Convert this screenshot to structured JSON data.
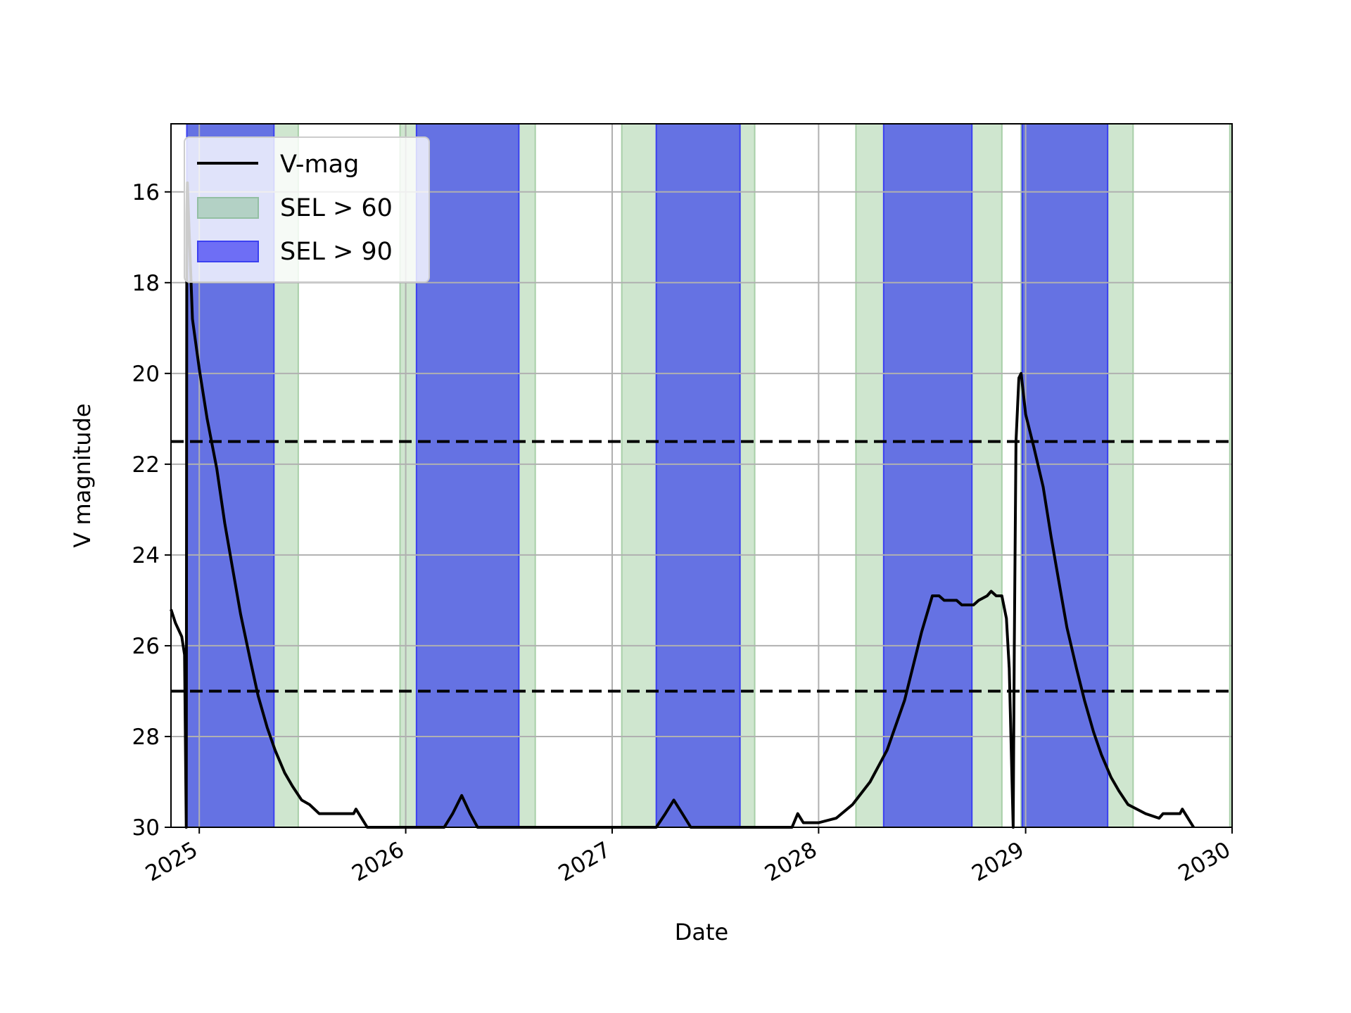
{
  "chart_data": {
    "type": "line",
    "title": "",
    "xlabel": "Date",
    "ylabel": "V magnitude",
    "xlim": [
      "2024-11-12",
      "2030-01-01"
    ],
    "ylim": [
      30,
      14.5
    ],
    "y_inverted": true,
    "grid": true,
    "x_ticks": [
      "2025",
      "2026",
      "2027",
      "2028",
      "2029",
      "2030"
    ],
    "x_tick_dates": [
      "2025-01-01",
      "2026-01-01",
      "2027-01-01",
      "2028-01-01",
      "2029-01-01",
      "2030-01-01"
    ],
    "y_ticks": [
      16,
      18,
      20,
      22,
      24,
      26,
      28,
      30
    ],
    "legend_position": "upper-left",
    "legend": [
      {
        "label": "V-mag",
        "kind": "line"
      },
      {
        "label": "SEL > 60",
        "kind": "patch"
      },
      {
        "label": "SEL > 90",
        "kind": "patch"
      }
    ],
    "colors": {
      "vmag": "#000000",
      "sel60": "#cfe6cf",
      "sel60_legend": "#b3d1c5",
      "sel90": "#6572e3",
      "sel90_edge": "#3b40f0",
      "grid": "#b0b0b0",
      "hline": "#000000"
    },
    "hlines": [
      21.5,
      27.0
    ],
    "series": [
      {
        "name": "V-mag",
        "points": [
          [
            "2024-11-12",
            25.2
          ],
          [
            "2024-11-20",
            25.5
          ],
          [
            "2024-12-01",
            25.8
          ],
          [
            "2024-12-06",
            26.2
          ],
          [
            "2024-12-09",
            30.0
          ],
          [
            "2024-12-10",
            16.5
          ],
          [
            "2024-12-11",
            15.8
          ],
          [
            "2024-12-13",
            16.5
          ],
          [
            "2024-12-20",
            18.8
          ],
          [
            "2025-01-01",
            19.9
          ],
          [
            "2025-01-15",
            21.0
          ],
          [
            "2025-02-01",
            22.1
          ],
          [
            "2025-02-15",
            23.3
          ],
          [
            "2025-03-01",
            24.3
          ],
          [
            "2025-03-15",
            25.3
          ],
          [
            "2025-04-01",
            26.3
          ],
          [
            "2025-04-15",
            27.1
          ],
          [
            "2025-05-01",
            27.8
          ],
          [
            "2025-05-15",
            28.3
          ],
          [
            "2025-06-01",
            28.8
          ],
          [
            "2025-06-15",
            29.1
          ],
          [
            "2025-07-01",
            29.4
          ],
          [
            "2025-07-15",
            29.5
          ],
          [
            "2025-08-01",
            29.7
          ],
          [
            "2025-09-01",
            29.7
          ],
          [
            "2025-10-01",
            29.7
          ],
          [
            "2025-10-05",
            29.6
          ],
          [
            "2025-10-15",
            29.8
          ],
          [
            "2025-10-25",
            30.0
          ],
          [
            "2026-03-10",
            30.0
          ],
          [
            "2026-03-25",
            29.7
          ],
          [
            "2026-04-10",
            29.3
          ],
          [
            "2026-04-25",
            29.7
          ],
          [
            "2026-05-08",
            30.0
          ],
          [
            "2027-03-20",
            30.0
          ],
          [
            "2027-04-05",
            29.7
          ],
          [
            "2027-04-20",
            29.4
          ],
          [
            "2027-05-05",
            29.7
          ],
          [
            "2027-05-20",
            30.0
          ],
          [
            "2027-11-15",
            30.0
          ],
          [
            "2027-11-25",
            29.7
          ],
          [
            "2027-12-05",
            29.9
          ],
          [
            "2028-01-01",
            29.9
          ],
          [
            "2028-02-01",
            29.8
          ],
          [
            "2028-03-01",
            29.5
          ],
          [
            "2028-04-01",
            29.0
          ],
          [
            "2028-05-01",
            28.3
          ],
          [
            "2028-06-01",
            27.2
          ],
          [
            "2028-07-01",
            25.7
          ],
          [
            "2028-07-20",
            24.9
          ],
          [
            "2028-08-01",
            24.9
          ],
          [
            "2028-08-10",
            25.0
          ],
          [
            "2028-09-01",
            25.0
          ],
          [
            "2028-09-10",
            25.1
          ],
          [
            "2028-10-01",
            25.1
          ],
          [
            "2028-10-10",
            25.0
          ],
          [
            "2028-10-25",
            24.9
          ],
          [
            "2028-11-01",
            24.8
          ],
          [
            "2028-11-10",
            24.9
          ],
          [
            "2028-11-20",
            24.9
          ],
          [
            "2028-11-28",
            25.4
          ],
          [
            "2028-12-03",
            26.5
          ],
          [
            "2028-12-07",
            28.5
          ],
          [
            "2028-12-10",
            30.0
          ],
          [
            "2028-12-12",
            26.0
          ],
          [
            "2028-12-15",
            21.5
          ],
          [
            "2028-12-20",
            20.1
          ],
          [
            "2028-12-24",
            20.0
          ],
          [
            "2029-01-01",
            20.9
          ],
          [
            "2029-01-15",
            21.6
          ],
          [
            "2029-02-01",
            22.5
          ],
          [
            "2029-02-15",
            23.6
          ],
          [
            "2029-03-01",
            24.6
          ],
          [
            "2029-03-15",
            25.6
          ],
          [
            "2029-04-01",
            26.5
          ],
          [
            "2029-04-15",
            27.2
          ],
          [
            "2029-05-01",
            27.9
          ],
          [
            "2029-05-15",
            28.4
          ],
          [
            "2029-06-01",
            28.9
          ],
          [
            "2029-06-15",
            29.2
          ],
          [
            "2029-07-01",
            29.5
          ],
          [
            "2029-08-01",
            29.7
          ],
          [
            "2029-08-25",
            29.8
          ],
          [
            "2029-09-01",
            29.7
          ],
          [
            "2029-10-01",
            29.7
          ],
          [
            "2029-10-05",
            29.6
          ],
          [
            "2029-10-15",
            29.8
          ],
          [
            "2029-10-25",
            30.0
          ]
        ]
      }
    ],
    "bands": [
      {
        "name": "SEL > 60",
        "ranges": [
          [
            "2024-12-10",
            "2025-06-25"
          ],
          [
            "2025-12-22",
            "2026-08-18"
          ],
          [
            "2027-01-18",
            "2027-09-10"
          ],
          [
            "2028-03-07",
            "2028-11-20"
          ],
          [
            "2028-12-24",
            "2029-07-10"
          ],
          [
            "2029-12-28",
            "2030-01-01"
          ]
        ]
      },
      {
        "name": "SEL > 90",
        "ranges": [
          [
            "2024-12-10",
            "2025-05-13"
          ],
          [
            "2026-01-20",
            "2026-07-20"
          ],
          [
            "2027-03-20",
            "2027-08-15"
          ],
          [
            "2028-04-25",
            "2028-09-28"
          ],
          [
            "2028-12-26",
            "2029-05-26"
          ]
        ]
      }
    ]
  }
}
